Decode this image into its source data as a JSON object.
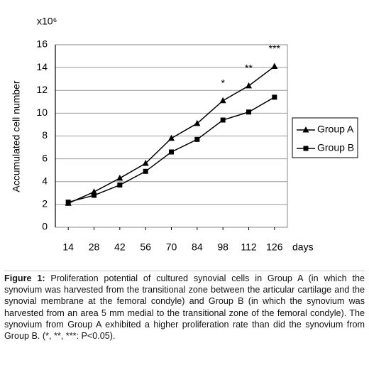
{
  "chart_data": {
    "type": "line",
    "y_unit": "x10⁶",
    "ylabel": "Accumulated cell number",
    "xlabel": "days",
    "x": [
      14,
      28,
      42,
      56,
      70,
      84,
      98,
      112,
      126
    ],
    "xlim": [
      7,
      133
    ],
    "xticks": [
      14,
      28,
      42,
      56,
      70,
      84,
      98,
      112,
      126
    ],
    "ylim": [
      0,
      16
    ],
    "yticks": [
      0,
      2,
      4,
      6,
      8,
      10,
      12,
      14,
      16
    ],
    "grid": true,
    "legend": "right",
    "series": [
      {
        "name": "Group A",
        "color": "#000000",
        "marker": "triangle",
        "values": [
          2.1,
          3.1,
          4.3,
          5.6,
          7.8,
          9.1,
          11.1,
          12.4,
          14.1
        ]
      },
      {
        "name": "Group B",
        "color": "#000000",
        "marker": "square",
        "values": [
          2.2,
          2.8,
          3.7,
          4.9,
          6.6,
          7.7,
          9.4,
          10.1,
          11.4
        ]
      }
    ],
    "annotations": [
      {
        "text": "*",
        "x": 98
      },
      {
        "text": "**",
        "x": 112
      },
      {
        "text": "***",
        "x": 126
      }
    ]
  },
  "caption": {
    "label": "Figure 1:",
    "text": "Proliferation potential of cultured synovial cells in Group A (in which the synovium was harvested from the transitional zone between the articular cartilage and the synovial membrane at the femoral condyle) and Group B (in which the synovium was harvested from an area 5 mm medial to the transitional zone of the femoral condyle). The synovium from Group A exhibited a higher proliferation rate than did the synovium from Group B. (*, **, ***: P<0.05)."
  }
}
